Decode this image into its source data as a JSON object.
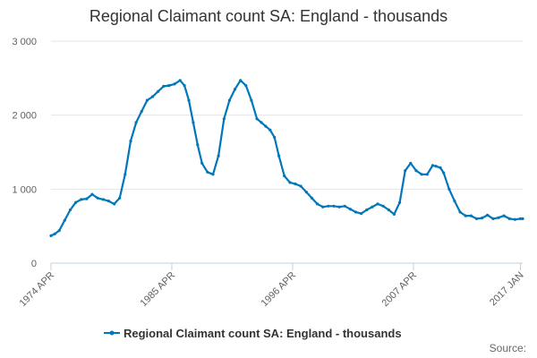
{
  "chart_data": {
    "type": "line",
    "title": "Regional Claimant count SA: England - thousands",
    "xlabel": "",
    "ylabel": "",
    "ylim": [
      0,
      3000
    ],
    "y_ticks": [
      "0",
      "1 000",
      "2 000",
      "3 000"
    ],
    "y_tick_values": [
      0,
      1000,
      2000,
      3000
    ],
    "x_tick_labels": [
      "1974 APR",
      "1985 APR",
      "1996 APR",
      "2007 APR",
      "2017 JAN"
    ],
    "x_tick_values": [
      1974.25,
      1985.25,
      1996.25,
      2007.25,
      2017.0
    ],
    "xlim": [
      1974.25,
      2017.2
    ],
    "grid": true,
    "legend_position": "bottom",
    "series": [
      {
        "name": "Regional Claimant count SA: England - thousands",
        "color": "#0077bb",
        "x": [
          1974.25,
          1974.6,
          1975.0,
          1975.5,
          1976.0,
          1976.5,
          1977.0,
          1977.5,
          1978.0,
          1978.5,
          1979.0,
          1979.5,
          1980.0,
          1980.5,
          1981.0,
          1981.5,
          1982.0,
          1982.5,
          1983.0,
          1983.5,
          1984.0,
          1984.5,
          1985.0,
          1985.5,
          1986.0,
          1986.4,
          1986.8,
          1987.2,
          1987.6,
          1988.0,
          1988.5,
          1989.0,
          1989.5,
          1990.0,
          1990.5,
          1991.0,
          1991.5,
          1992.0,
          1992.5,
          1993.0,
          1993.4,
          1993.8,
          1994.2,
          1994.6,
          1995.0,
          1995.5,
          1996.0,
          1996.5,
          1997.0,
          1997.5,
          1998.0,
          1998.5,
          1999.0,
          1999.5,
          2000.0,
          2000.5,
          2001.0,
          2001.5,
          2002.0,
          2002.5,
          2003.0,
          2003.5,
          2004.0,
          2004.5,
          2005.0,
          2005.5,
          2006.0,
          2006.5,
          2007.0,
          2007.5,
          2008.0,
          2008.5,
          2009.0,
          2009.3,
          2009.7,
          2010.0,
          2010.5,
          2011.0,
          2011.5,
          2012.0,
          2012.5,
          2013.0,
          2013.5,
          2014.0,
          2014.5,
          2015.0,
          2015.5,
          2016.0,
          2016.5,
          2017.0,
          2017.2
        ],
        "values": [
          370,
          395,
          440,
          580,
          720,
          820,
          860,
          870,
          930,
          880,
          860,
          840,
          800,
          880,
          1200,
          1650,
          1900,
          2050,
          2200,
          2250,
          2320,
          2390,
          2400,
          2420,
          2470,
          2400,
          2200,
          1900,
          1600,
          1350,
          1230,
          1200,
          1450,
          1950,
          2200,
          2350,
          2470,
          2400,
          2200,
          1950,
          1900,
          1850,
          1800,
          1700,
          1450,
          1180,
          1090,
          1070,
          1040,
          960,
          880,
          800,
          760,
          770,
          770,
          760,
          770,
          730,
          690,
          670,
          720,
          760,
          800,
          770,
          720,
          660,
          820,
          1250,
          1350,
          1250,
          1200,
          1200,
          1320,
          1310,
          1290,
          1220,
          1000,
          840,
          690,
          640,
          640,
          600,
          610,
          650,
          600,
          615,
          640,
          600,
          590,
          600,
          600
        ]
      }
    ]
  },
  "footer": {
    "source_label": "Source:"
  }
}
